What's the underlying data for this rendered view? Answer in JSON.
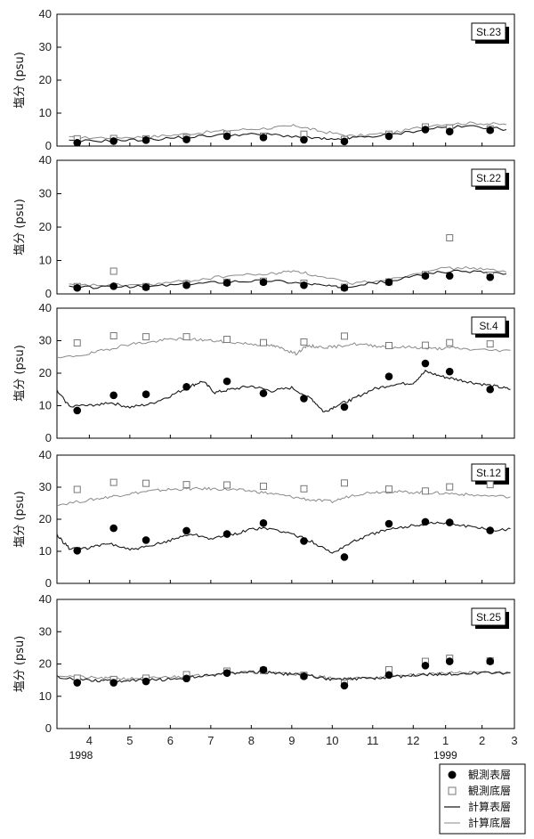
{
  "chart_data": [
    {
      "type": "line",
      "station": "St.23",
      "ylabel": "塩分 (psu)",
      "ylim": [
        0,
        40
      ],
      "yticks": [
        0,
        10,
        20,
        30,
        40
      ],
      "observed_surface": [
        [
          0.2,
          1
        ],
        [
          1.1,
          1.5
        ],
        [
          1.9,
          1.8
        ],
        [
          2.9,
          2
        ],
        [
          3.9,
          3
        ],
        [
          4.8,
          2.6
        ],
        [
          5.8,
          1.9
        ],
        [
          6.8,
          1.4
        ],
        [
          7.9,
          3
        ],
        [
          8.8,
          5
        ],
        [
          9.4,
          4.4
        ],
        [
          10.4,
          4.8
        ]
      ],
      "observed_bottom": [
        [
          0.2,
          2.2
        ],
        [
          1.1,
          2.3
        ],
        [
          1.9,
          2.2
        ],
        [
          2.9,
          2.6
        ],
        [
          3.9,
          3.6
        ],
        [
          4.8,
          3
        ],
        [
          5.8,
          3.6
        ],
        [
          6.8,
          2
        ],
        [
          7.9,
          3.6
        ],
        [
          8.8,
          5.8
        ],
        [
          9.4,
          5.5
        ],
        [
          10.4,
          5.2
        ]
      ],
      "calc_surface": [
        [
          0,
          1.5
        ],
        [
          1,
          1.6
        ],
        [
          2,
          2
        ],
        [
          3,
          2.8
        ],
        [
          4,
          3.5
        ],
        [
          5,
          3.5
        ],
        [
          6,
          2.5
        ],
        [
          6.6,
          1.8
        ],
        [
          7,
          2.5
        ],
        [
          8,
          3.5
        ],
        [
          9,
          5.5
        ],
        [
          10,
          6
        ],
        [
          10.8,
          5
        ]
      ],
      "calc_bottom": [
        [
          0,
          2.5
        ],
        [
          1,
          2.6
        ],
        [
          2,
          2.8
        ],
        [
          3,
          3.8
        ],
        [
          4,
          4.8
        ],
        [
          5,
          5.5
        ],
        [
          5.6,
          6.2
        ],
        [
          6.2,
          4.5
        ],
        [
          7,
          3
        ],
        [
          8,
          4
        ],
        [
          9,
          6.5
        ],
        [
          10,
          7
        ],
        [
          10.8,
          6.5
        ]
      ]
    },
    {
      "type": "line",
      "station": "St.22",
      "ylabel": "塩分 (psu)",
      "ylim": [
        0,
        40
      ],
      "yticks": [
        0,
        10,
        20,
        30,
        40
      ],
      "observed_surface": [
        [
          0.2,
          1.8
        ],
        [
          1.1,
          2.3
        ],
        [
          1.9,
          2
        ],
        [
          2.9,
          2.6
        ],
        [
          3.9,
          3.3
        ],
        [
          4.8,
          3.5
        ],
        [
          5.8,
          2.6
        ],
        [
          6.8,
          1.8
        ],
        [
          7.9,
          3.5
        ],
        [
          8.8,
          5.4
        ],
        [
          9.4,
          5.4
        ],
        [
          10.4,
          5
        ]
      ],
      "observed_bottom": [
        [
          0.2,
          2.2
        ],
        [
          1.1,
          6.8
        ],
        [
          1.9,
          2.2
        ],
        [
          2.9,
          3
        ],
        [
          3.9,
          3.5
        ],
        [
          4.8,
          3.8
        ],
        [
          5.8,
          3.2
        ],
        [
          6.8,
          2
        ],
        [
          7.9,
          3.6
        ],
        [
          8.8,
          5.8
        ],
        [
          9.4,
          16.8
        ],
        [
          10.4,
          5.6
        ]
      ],
      "calc_surface": [
        [
          0,
          2
        ],
        [
          1,
          2
        ],
        [
          2,
          2.3
        ],
        [
          3,
          3
        ],
        [
          4,
          3.8
        ],
        [
          5,
          4
        ],
        [
          6,
          3
        ],
        [
          6.6,
          2
        ],
        [
          7,
          2.5
        ],
        [
          8,
          4
        ],
        [
          9,
          6.5
        ],
        [
          10,
          6.8
        ],
        [
          10.8,
          6
        ]
      ],
      "calc_bottom": [
        [
          0,
          2.6
        ],
        [
          1,
          2.6
        ],
        [
          2,
          2.8
        ],
        [
          3,
          4
        ],
        [
          4,
          5.5
        ],
        [
          5,
          6
        ],
        [
          5.6,
          7
        ],
        [
          6.2,
          5
        ],
        [
          7,
          3.2
        ],
        [
          8,
          4.5
        ],
        [
          9,
          7.5
        ],
        [
          10,
          7.8
        ],
        [
          10.8,
          6.5
        ]
      ]
    },
    {
      "type": "line",
      "station": "St.4",
      "ylabel": "塩分 (psu)",
      "ylim": [
        0,
        40
      ],
      "yticks": [
        0,
        10,
        20,
        30,
        40
      ],
      "observed_surface": [
        [
          0.2,
          8.5
        ],
        [
          1.1,
          13.2
        ],
        [
          1.9,
          13.5
        ],
        [
          2.9,
          15.8
        ],
        [
          3.9,
          17.5
        ],
        [
          4.8,
          13.8
        ],
        [
          5.8,
          12.2
        ],
        [
          6.8,
          9.6
        ],
        [
          7.9,
          19
        ],
        [
          8.8,
          23
        ],
        [
          9.4,
          20.5
        ],
        [
          10.4,
          15
        ]
      ],
      "observed_bottom": [
        [
          0.2,
          29.3
        ],
        [
          1.1,
          31.5
        ],
        [
          1.9,
          31.2
        ],
        [
          2.9,
          31.2
        ],
        [
          3.9,
          30.4
        ],
        [
          4.8,
          29.4
        ],
        [
          5.8,
          29.6
        ],
        [
          6.8,
          31.4
        ],
        [
          7.9,
          28.5
        ],
        [
          8.8,
          28.6
        ],
        [
          9.4,
          29.4
        ],
        [
          10.4,
          29
        ]
      ],
      "calc_surface": [
        [
          -0.3,
          14.5
        ],
        [
          0,
          10
        ],
        [
          0.5,
          10
        ],
        [
          1,
          11
        ],
        [
          1.5,
          9.5
        ],
        [
          2,
          10.5
        ],
        [
          2.5,
          13
        ],
        [
          3,
          16
        ],
        [
          3.3,
          17.5
        ],
        [
          3.6,
          14
        ],
        [
          4,
          15
        ],
        [
          4.5,
          16
        ],
        [
          5,
          14.5
        ],
        [
          5.5,
          15.5
        ],
        [
          6,
          12
        ],
        [
          6.3,
          8
        ],
        [
          6.6,
          10
        ],
        [
          7,
          12
        ],
        [
          7.5,
          15
        ],
        [
          8,
          16.5
        ],
        [
          8.5,
          17
        ],
        [
          8.8,
          20.5
        ],
        [
          9.2,
          19
        ],
        [
          9.6,
          18
        ],
        [
          10,
          17
        ],
        [
          10.5,
          16
        ],
        [
          10.9,
          15
        ]
      ],
      "calc_bottom": [
        [
          -0.3,
          24.5
        ],
        [
          0.5,
          26
        ],
        [
          1,
          27.5
        ],
        [
          1.5,
          29
        ],
        [
          2,
          29.5
        ],
        [
          2.5,
          30.5
        ],
        [
          3,
          30.5
        ],
        [
          3.5,
          30
        ],
        [
          4,
          29.5
        ],
        [
          4.5,
          29
        ],
        [
          5,
          28.5
        ],
        [
          5.3,
          27.5
        ],
        [
          5.6,
          26
        ],
        [
          5.9,
          28.5
        ],
        [
          6.2,
          28
        ],
        [
          6.5,
          28
        ],
        [
          7,
          29
        ],
        [
          7.5,
          28.5
        ],
        [
          8,
          28
        ],
        [
          8.5,
          28
        ],
        [
          9,
          27.5
        ],
        [
          9.5,
          27.8
        ],
        [
          10,
          27.2
        ],
        [
          10.9,
          27
        ]
      ]
    },
    {
      "type": "line",
      "station": "St.12",
      "ylabel": "塩分 (psu)",
      "ylim": [
        0,
        40
      ],
      "yticks": [
        0,
        10,
        20,
        30,
        40
      ],
      "observed_surface": [
        [
          0.2,
          10.2
        ],
        [
          1.1,
          17.2
        ],
        [
          1.9,
          13.5
        ],
        [
          2.9,
          16.4
        ],
        [
          3.9,
          15.4
        ],
        [
          4.8,
          18.8
        ],
        [
          5.8,
          13.2
        ],
        [
          6.8,
          8.2
        ],
        [
          7.9,
          18.6
        ],
        [
          8.8,
          19.2
        ],
        [
          9.4,
          19
        ],
        [
          10.4,
          16.5
        ]
      ],
      "observed_bottom": [
        [
          0.2,
          29.3
        ],
        [
          1.1,
          31.5
        ],
        [
          1.9,
          31.2
        ],
        [
          2.9,
          30.8
        ],
        [
          3.9,
          30.7
        ],
        [
          4.8,
          30.3
        ],
        [
          5.8,
          29.5
        ],
        [
          6.8,
          31.3
        ],
        [
          7.9,
          29.4
        ],
        [
          8.8,
          28.8
        ],
        [
          9.4,
          30.1
        ],
        [
          10.4,
          30.8
        ]
      ],
      "calc_surface": [
        [
          -0.3,
          15
        ],
        [
          0,
          11
        ],
        [
          0.5,
          11
        ],
        [
          1,
          12.5
        ],
        [
          1.5,
          10.5
        ],
        [
          2,
          11.5
        ],
        [
          2.5,
          13.5
        ],
        [
          3,
          15.5
        ],
        [
          3.5,
          14
        ],
        [
          4,
          15
        ],
        [
          4.5,
          17
        ],
        [
          5,
          17
        ],
        [
          5.5,
          15.5
        ],
        [
          6,
          13
        ],
        [
          6.5,
          9.5
        ],
        [
          7,
          13
        ],
        [
          7.5,
          15.5
        ],
        [
          8,
          17
        ],
        [
          8.5,
          18
        ],
        [
          9,
          19
        ],
        [
          9.5,
          18.5
        ],
        [
          10,
          17.5
        ],
        [
          10.5,
          16.5
        ],
        [
          10.9,
          17
        ]
      ],
      "calc_bottom": [
        [
          -0.3,
          24.5
        ],
        [
          0.5,
          26
        ],
        [
          1,
          27
        ],
        [
          1.5,
          28
        ],
        [
          2,
          28.8
        ],
        [
          2.5,
          29.3
        ],
        [
          3,
          29.5
        ],
        [
          3.5,
          29.5
        ],
        [
          4,
          29.3
        ],
        [
          4.5,
          28.8
        ],
        [
          5,
          28
        ],
        [
          5.5,
          27
        ],
        [
          6,
          26
        ],
        [
          6.5,
          25.5
        ],
        [
          7,
          27.5
        ],
        [
          7.5,
          28.5
        ],
        [
          8,
          28.6
        ],
        [
          8.5,
          28.4
        ],
        [
          9,
          28.2
        ],
        [
          9.5,
          28
        ],
        [
          10,
          27.5
        ],
        [
          10.9,
          27
        ]
      ]
    },
    {
      "type": "line",
      "station": "St.25",
      "ylabel": "塩分 (psu)",
      "ylim": [
        0,
        40
      ],
      "yticks": [
        0,
        10,
        20,
        30,
        40
      ],
      "observed_surface": [
        [
          0.2,
          14.2
        ],
        [
          1.1,
          14.2
        ],
        [
          1.9,
          14.6
        ],
        [
          2.9,
          15.5
        ],
        [
          3.9,
          17.2
        ],
        [
          4.8,
          18.2
        ],
        [
          5.8,
          16.2
        ],
        [
          6.8,
          13.3
        ],
        [
          7.9,
          16.6
        ],
        [
          8.8,
          19.5
        ],
        [
          9.4,
          20.8
        ],
        [
          10.4,
          20.8
        ]
      ],
      "observed_bottom": [
        [
          0.2,
          15.6
        ],
        [
          1.1,
          15.2
        ],
        [
          1.9,
          15.6
        ],
        [
          2.9,
          16.7
        ],
        [
          3.9,
          17.8
        ],
        [
          4.8,
          18
        ],
        [
          5.8,
          16.5
        ],
        [
          6.8,
          14
        ],
        [
          7.9,
          18.2
        ],
        [
          8.8,
          20.8
        ],
        [
          9.4,
          21.8
        ],
        [
          10.4,
          21
        ]
      ],
      "calc_surface": [
        [
          -0.3,
          16
        ],
        [
          0.5,
          15
        ],
        [
          1,
          14.8
        ],
        [
          1.5,
          14.8
        ],
        [
          2,
          15
        ],
        [
          2.5,
          15.3
        ],
        [
          3,
          15.8
        ],
        [
          3.5,
          16.5
        ],
        [
          4,
          17.2
        ],
        [
          4.5,
          17.5
        ],
        [
          5,
          17.3
        ],
        [
          5.5,
          16.8
        ],
        [
          6,
          16.2
        ],
        [
          6.5,
          15.2
        ],
        [
          7,
          15.3
        ],
        [
          7.5,
          15.6
        ],
        [
          8,
          16
        ],
        [
          8.5,
          16.5
        ],
        [
          9,
          16.8
        ],
        [
          9.5,
          17
        ],
        [
          10,
          17.2
        ],
        [
          10.9,
          17.2
        ]
      ],
      "calc_bottom": [
        [
          -0.3,
          16.5
        ],
        [
          0.5,
          15.8
        ],
        [
          1,
          15.5
        ],
        [
          1.5,
          15.5
        ],
        [
          2,
          15.6
        ],
        [
          2.5,
          16
        ],
        [
          3,
          16.2
        ],
        [
          3.5,
          16.8
        ],
        [
          4,
          17.3
        ],
        [
          4.5,
          17.5
        ],
        [
          5,
          17.4
        ],
        [
          5.5,
          17
        ],
        [
          6,
          16.5
        ],
        [
          6.5,
          15.5
        ],
        [
          7,
          15.5
        ],
        [
          7.5,
          15.8
        ],
        [
          8,
          16.2
        ],
        [
          8.5,
          16.6
        ],
        [
          9,
          17
        ],
        [
          9.5,
          17.2
        ],
        [
          10,
          17.4
        ],
        [
          10.9,
          17.4
        ]
      ]
    }
  ],
  "x_axis": {
    "range": [
      -0.3,
      11
    ],
    "month_ticks": [
      {
        "x": 0.5,
        "label": "4"
      },
      {
        "x": 1.5,
        "label": "5"
      },
      {
        "x": 2.5,
        "label": "6"
      },
      {
        "x": 3.5,
        "label": "7"
      },
      {
        "x": 4.5,
        "label": "8"
      },
      {
        "x": 5.5,
        "label": "9"
      },
      {
        "x": 6.5,
        "label": "10"
      },
      {
        "x": 7.5,
        "label": "11"
      },
      {
        "x": 8.5,
        "label": "12"
      },
      {
        "x": 9.3,
        "label": "1"
      },
      {
        "x": 10.2,
        "label": "2"
      },
      {
        "x": 11.0,
        "label": "3"
      }
    ],
    "years": [
      {
        "x": 0,
        "label": "1998"
      },
      {
        "x": 9,
        "label": "1999"
      }
    ]
  },
  "legend": [
    {
      "key": "observed_surface",
      "label": "観測表層",
      "marker": "filled-circle"
    },
    {
      "key": "observed_bottom",
      "label": "観測底層",
      "marker": "open-square"
    },
    {
      "key": "calc_surface",
      "label": "計算表層",
      "marker": "dark-line"
    },
    {
      "key": "calc_bottom",
      "label": "計算底層",
      "marker": "light-line"
    }
  ],
  "colors": {
    "observed_surface": "#000000",
    "observed_bottom": "#777777",
    "calc_surface": "#1a1a1a",
    "calc_bottom": "#8a8a8a",
    "frame": "#000000"
  }
}
